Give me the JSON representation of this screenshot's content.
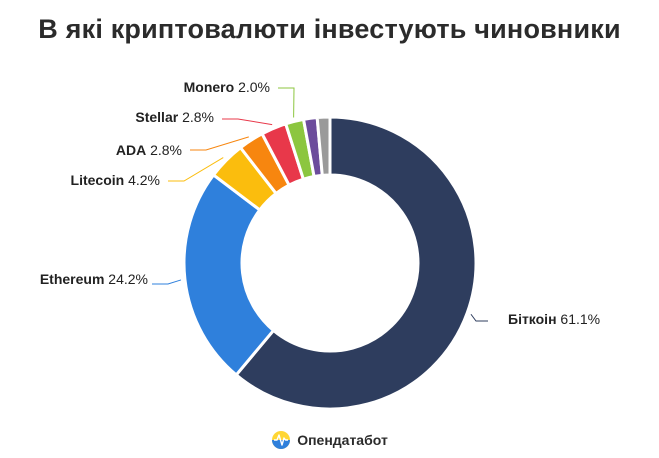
{
  "title": "В які криптовалюти інвестують чиновники",
  "brand": {
    "name": "Опендатабот",
    "icon": "opendatabot-logo-icon"
  },
  "chart_data": {
    "type": "pie",
    "donut": true,
    "title": "В які криптовалюти інвестують чиновники",
    "unit": "%",
    "slices": [
      {
        "label": "Біткоін",
        "value": 61.1,
        "display": "61.1%",
        "color": "#2e3d5e"
      },
      {
        "label": "Ethereum",
        "value": 24.2,
        "display": "24.2%",
        "color": "#2f80dc"
      },
      {
        "label": "Litecoin",
        "value": 4.2,
        "display": "4.2%",
        "color": "#fbbd0d"
      },
      {
        "label": "ADA",
        "value": 2.8,
        "display": "2.8%",
        "color": "#f7860f"
      },
      {
        "label": "Stellar",
        "value": 2.8,
        "display": "2.8%",
        "color": "#e8384a"
      },
      {
        "label": "Monero",
        "value": 2.0,
        "display": "2.0%",
        "color": "#8cc63f"
      },
      {
        "label": "",
        "value": 1.5,
        "display": "",
        "color": "#6c4c9c"
      },
      {
        "label": "",
        "value": 1.4,
        "display": "",
        "color": "#9a9a9a"
      }
    ],
    "legend": "none"
  }
}
